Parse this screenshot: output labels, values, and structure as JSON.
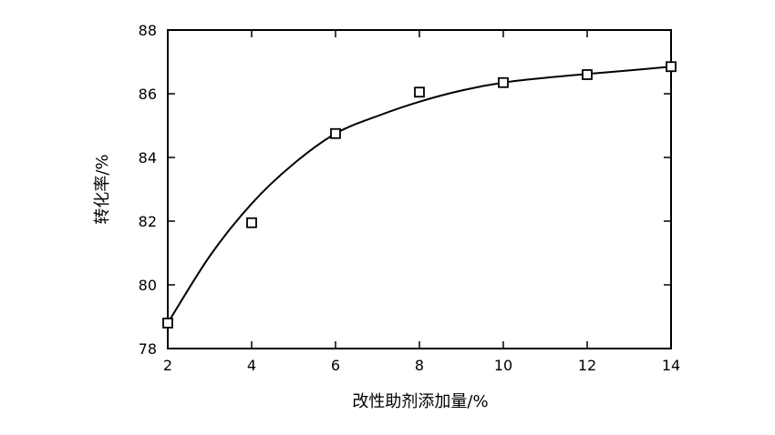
{
  "chart_data": {
    "type": "scatter",
    "xlabel": "改性助剂添加量/%",
    "ylabel": "转化率/%",
    "xlim": [
      2,
      14
    ],
    "ylim": [
      78,
      88
    ],
    "xticks": [
      2,
      4,
      6,
      8,
      10,
      12,
      14
    ],
    "yticks": [
      78,
      80,
      82,
      84,
      86,
      88
    ],
    "xtick_labels": [
      "2",
      "4",
      "6",
      "8",
      "10",
      "12",
      "14"
    ],
    "ytick_labels": [
      "78",
      "80",
      "82",
      "84",
      "86",
      "88"
    ],
    "series": [
      {
        "marker": "open-square",
        "x": [
          2,
          4,
          6,
          8,
          10,
          12,
          14
        ],
        "y": [
          78.8,
          81.95,
          84.75,
          86.05,
          86.35,
          86.6,
          86.85
        ]
      }
    ],
    "fit_curve": {
      "style": "smooth-line",
      "x": [
        2,
        3,
        4,
        5,
        6,
        7,
        8,
        9,
        10,
        11,
        12,
        13,
        14
      ],
      "y": [
        78.8,
        80.9,
        82.55,
        83.8,
        84.75,
        85.3,
        85.75,
        86.1,
        86.35,
        86.5,
        86.62,
        86.73,
        86.85
      ]
    },
    "grid": false,
    "legend": "none"
  }
}
